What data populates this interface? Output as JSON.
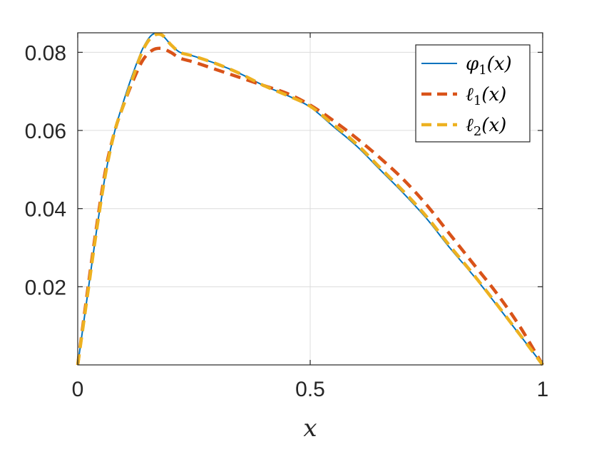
{
  "chart_data": {
    "type": "line",
    "xlabel": "x",
    "ylabel": "",
    "xlim": [
      0,
      1
    ],
    "ylim": [
      0,
      0.085
    ],
    "xticks": [
      0,
      0.5,
      1
    ],
    "xtick_labels": [
      "0",
      "0.5",
      "1"
    ],
    "yticks": [
      0.02,
      0.04,
      0.06,
      0.08
    ],
    "ytick_labels": [
      "0.02",
      "0.04",
      "0.06",
      "0.08"
    ],
    "grid": true,
    "legend_position": "top-right",
    "series": [
      {
        "name": "φ1(x)",
        "label_base": "φ",
        "label_sub": "1",
        "label_arg": "(x)",
        "color": "#0072BD",
        "style": "solid",
        "x": [
          0,
          0.02,
          0.04,
          0.06,
          0.08,
          0.1,
          0.12,
          0.14,
          0.16,
          0.18,
          0.2,
          0.22,
          0.25,
          0.3,
          0.35,
          0.4,
          0.45,
          0.5,
          0.55,
          0.6,
          0.65,
          0.7,
          0.75,
          0.8,
          0.85,
          0.9,
          0.95,
          1.0
        ],
        "y": [
          0,
          0.017,
          0.034,
          0.049,
          0.06,
          0.068,
          0.075,
          0.081,
          0.0845,
          0.0845,
          0.082,
          0.08,
          0.079,
          0.077,
          0.0745,
          0.0715,
          0.069,
          0.066,
          0.061,
          0.056,
          0.05,
          0.044,
          0.0375,
          0.03,
          0.023,
          0.0155,
          0.0078,
          0
        ]
      },
      {
        "name": "ℓ1(x)",
        "label_base": "ℓ",
        "label_sub": "1",
        "label_arg": "(x)",
        "color": "#D95319",
        "style": "dashed",
        "x": [
          0,
          0.02,
          0.04,
          0.06,
          0.08,
          0.1,
          0.12,
          0.14,
          0.16,
          0.18,
          0.2,
          0.22,
          0.25,
          0.3,
          0.35,
          0.4,
          0.45,
          0.5,
          0.55,
          0.6,
          0.65,
          0.7,
          0.75,
          0.8,
          0.85,
          0.9,
          0.95,
          1.0
        ],
        "y": [
          0,
          0.018,
          0.035,
          0.05,
          0.06,
          0.067,
          0.073,
          0.078,
          0.0805,
          0.081,
          0.08,
          0.0785,
          0.0775,
          0.0755,
          0.0735,
          0.0715,
          0.0695,
          0.0665,
          0.0625,
          0.058,
          0.053,
          0.0475,
          0.041,
          0.0335,
          0.026,
          0.0185,
          0.01,
          0
        ]
      },
      {
        "name": "ℓ2(x)",
        "label_base": "ℓ",
        "label_sub": "2",
        "label_arg": "(x)",
        "color": "#EDB120",
        "style": "dashed",
        "x": [
          0,
          0.02,
          0.04,
          0.06,
          0.08,
          0.1,
          0.12,
          0.14,
          0.16,
          0.18,
          0.2,
          0.22,
          0.25,
          0.3,
          0.35,
          0.4,
          0.45,
          0.5,
          0.55,
          0.6,
          0.65,
          0.7,
          0.75,
          0.8,
          0.85,
          0.9,
          0.95,
          1.0
        ],
        "y": [
          0,
          0.017,
          0.034,
          0.049,
          0.06,
          0.067,
          0.074,
          0.0805,
          0.084,
          0.0845,
          0.082,
          0.08,
          0.079,
          0.077,
          0.0745,
          0.0715,
          0.069,
          0.0662,
          0.0615,
          0.0565,
          0.0505,
          0.0445,
          0.038,
          0.0305,
          0.0233,
          0.0157,
          0.0079,
          0
        ]
      }
    ]
  }
}
